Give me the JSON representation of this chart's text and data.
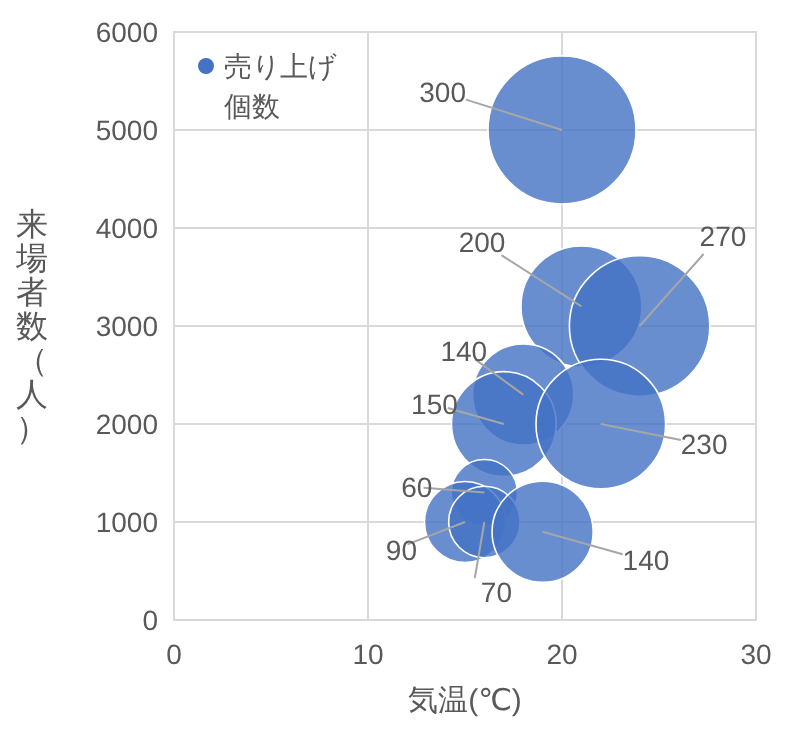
{
  "chart_data": {
    "type": "bubble",
    "xlabel": "気温(℃)",
    "ylabel": "来場者数（人）",
    "series": [
      {
        "name": "売り上げ個数",
        "color": "#4472c4",
        "x": [
          20,
          21,
          24,
          18,
          17,
          22,
          16,
          15,
          16,
          19
        ],
        "values": [
          5000,
          3200,
          3000,
          2300,
          2000,
          2000,
          1300,
          1000,
          1000,
          900
        ],
        "sizes": [
          300,
          200,
          270,
          140,
          150,
          230,
          60,
          90,
          70,
          140
        ],
        "value_labels": [
          "300",
          "200",
          "270",
          "140",
          "150",
          "230",
          "60",
          "90",
          "70",
          "140"
        ]
      }
    ],
    "xlim": [
      0,
      30
    ],
    "xticks": [
      0,
      10,
      20,
      30
    ],
    "ylim": [
      0,
      6000
    ],
    "yticks": [
      0,
      1000,
      2000,
      3000,
      4000,
      5000,
      6000
    ],
    "grid": true,
    "legend": "top left"
  }
}
